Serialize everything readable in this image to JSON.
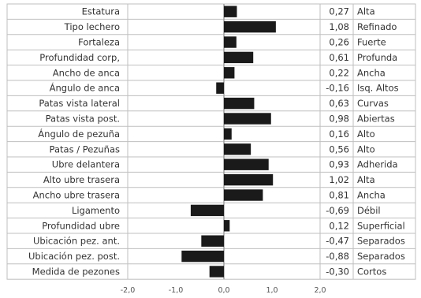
{
  "chart_data": {
    "type": "bar",
    "orientation": "horizontal",
    "title": "",
    "xlabel": "",
    "ylabel": "",
    "xlim": [
      -2.0,
      2.0
    ],
    "xticks": [
      -2.0,
      -1.0,
      0.0,
      1.0,
      2.0
    ],
    "xtick_labels": [
      "-2,0",
      "-1,0",
      "0,0",
      "1,0",
      "2,0"
    ],
    "grid": true,
    "bar_color": "#1a1a1a",
    "grid_color": "#bfbfbf",
    "rows": [
      {
        "trait": "Estatura",
        "value": 0.27,
        "value_label": "0,27",
        "descriptor": "Alta"
      },
      {
        "trait": "Tipo lechero",
        "value": 1.08,
        "value_label": "1,08",
        "descriptor": "Refinado"
      },
      {
        "trait": "Fortaleza",
        "value": 0.26,
        "value_label": "0,26",
        "descriptor": "Fuerte"
      },
      {
        "trait": "Profundidad corp,",
        "value": 0.61,
        "value_label": "0,61",
        "descriptor": "Profunda"
      },
      {
        "trait": "Ancho de anca",
        "value": 0.22,
        "value_label": "0,22",
        "descriptor": "Ancha"
      },
      {
        "trait": "Ángulo de anca",
        "value": -0.16,
        "value_label": "-0,16",
        "descriptor": "Isq. Altos"
      },
      {
        "trait": "Patas vista lateral",
        "value": 0.63,
        "value_label": "0,63",
        "descriptor": "Curvas"
      },
      {
        "trait": "Patas vista post.",
        "value": 0.98,
        "value_label": "0,98",
        "descriptor": "Abiertas"
      },
      {
        "trait": "Ángulo de pezuña",
        "value": 0.16,
        "value_label": "0,16",
        "descriptor": "Alto"
      },
      {
        "trait": "Patas / Pezuñas",
        "value": 0.56,
        "value_label": "0,56",
        "descriptor": "Alto"
      },
      {
        "trait": "Ubre delantera",
        "value": 0.93,
        "value_label": "0,93",
        "descriptor": "Adherida"
      },
      {
        "trait": "Alto ubre trasera",
        "value": 1.02,
        "value_label": "1,02",
        "descriptor": "Alta"
      },
      {
        "trait": "Ancho ubre trasera",
        "value": 0.81,
        "value_label": "0,81",
        "descriptor": "Ancha"
      },
      {
        "trait": "Ligamento",
        "value": -0.69,
        "value_label": "-0,69",
        "descriptor": "Débil"
      },
      {
        "trait": "Profundidad ubre",
        "value": 0.12,
        "value_label": "0,12",
        "descriptor": "Superficial"
      },
      {
        "trait": "Ubicación pez. ant.",
        "value": -0.47,
        "value_label": "-0,47",
        "descriptor": "Separados"
      },
      {
        "trait": "Ubicación pez. post.",
        "value": -0.88,
        "value_label": "-0,88",
        "descriptor": "Separados"
      },
      {
        "trait": "Medida de pezones",
        "value": -0.3,
        "value_label": "-0,30",
        "descriptor": "Cortos"
      }
    ]
  }
}
